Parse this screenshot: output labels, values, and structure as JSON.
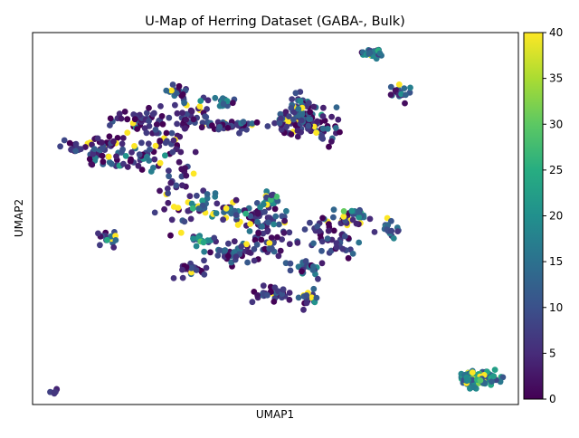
{
  "chart_data": {
    "type": "scatter",
    "title": "U-Map of Herring Dataset (GABA-, Bulk)",
    "xlabel": "UMAP1",
    "ylabel": "UMAP2",
    "xticks": false,
    "yticks": false,
    "grid": false,
    "colormap": "viridis",
    "colorbar": {
      "min": 0,
      "max": 40,
      "ticks": [
        "0",
        "5",
        "10",
        "15",
        "20",
        "25",
        "30",
        "35",
        "40"
      ]
    },
    "xlim": [
      0,
      100
    ],
    "ylim": [
      0,
      100
    ],
    "clusters": [
      {
        "x": 70.5,
        "y": 94.5,
        "sx": 1.4,
        "sy": 0.7,
        "n": 24,
        "color_mean": 14,
        "color_spread": 12
      },
      {
        "x": 75.5,
        "y": 83.5,
        "sx": 1.1,
        "sy": 1.0,
        "n": 18,
        "color_mean": 9,
        "color_spread": 10
      },
      {
        "x": 56.5,
        "y": 75.5,
        "sx": 3.8,
        "sy": 2.2,
        "n": 110,
        "color_mean": 6,
        "color_spread": 9
      },
      {
        "x": 55.5,
        "y": 80.5,
        "sx": 1.2,
        "sy": 1.4,
        "n": 30,
        "color_mean": 8,
        "color_spread": 10
      },
      {
        "x": 22.5,
        "y": 76.5,
        "sx": 3.0,
        "sy": 1.8,
        "n": 45,
        "color_mean": 5,
        "color_spread": 9
      },
      {
        "x": 40.5,
        "y": 75.0,
        "sx": 3.0,
        "sy": 0.8,
        "n": 40,
        "color_mean": 6,
        "color_spread": 10
      },
      {
        "x": 33.5,
        "y": 78.0,
        "sx": 2.0,
        "sy": 2.2,
        "n": 35,
        "color_mean": 4,
        "color_spread": 7
      },
      {
        "x": 30.5,
        "y": 84.0,
        "sx": 1.5,
        "sy": 1.0,
        "n": 18,
        "color_mean": 9,
        "color_spread": 10
      },
      {
        "x": 39.5,
        "y": 81.5,
        "sx": 1.5,
        "sy": 0.8,
        "n": 16,
        "color_mean": 12,
        "color_spread": 10
      },
      {
        "x": 20.5,
        "y": 67.0,
        "sx": 2.5,
        "sy": 2.2,
        "n": 40,
        "color_mean": 8,
        "color_spread": 10
      },
      {
        "x": 13.5,
        "y": 67.5,
        "sx": 1.2,
        "sy": 1.8,
        "n": 22,
        "color_mean": 8,
        "color_spread": 10
      },
      {
        "x": 15.5,
        "y": 70.5,
        "sx": 2.0,
        "sy": 1.0,
        "n": 20,
        "color_mean": 3,
        "color_spread": 6
      },
      {
        "x": 28.0,
        "y": 71.0,
        "sx": 2.0,
        "sy": 2.5,
        "n": 30,
        "color_mean": 6,
        "color_spread": 9
      },
      {
        "x": 30.5,
        "y": 57.0,
        "sx": 2.5,
        "sy": 5.0,
        "n": 40,
        "color_mean": 3,
        "color_spread": 6
      },
      {
        "x": 34.5,
        "y": 53.5,
        "sx": 2.2,
        "sy": 2.0,
        "n": 22,
        "color_mean": 14,
        "color_spread": 10
      },
      {
        "x": 8.5,
        "y": 69.0,
        "sx": 1.5,
        "sy": 0.8,
        "n": 16,
        "color_mean": 6,
        "color_spread": 8
      },
      {
        "x": 15.5,
        "y": 44.5,
        "sx": 1.2,
        "sy": 1.2,
        "n": 16,
        "color_mean": 10,
        "color_spread": 10
      },
      {
        "x": 47.5,
        "y": 50.0,
        "sx": 3.0,
        "sy": 2.5,
        "n": 55,
        "color_mean": 6,
        "color_spread": 9
      },
      {
        "x": 49.0,
        "y": 55.5,
        "sx": 1.2,
        "sy": 1.2,
        "n": 18,
        "color_mean": 15,
        "color_spread": 10
      },
      {
        "x": 40.5,
        "y": 51.5,
        "sx": 1.5,
        "sy": 1.2,
        "n": 16,
        "color_mean": 12,
        "color_spread": 10
      },
      {
        "x": 41.0,
        "y": 40.5,
        "sx": 2.5,
        "sy": 1.5,
        "n": 32,
        "color_mean": 9,
        "color_spread": 10
      },
      {
        "x": 33.5,
        "y": 36.0,
        "sx": 1.8,
        "sy": 1.2,
        "n": 20,
        "color_mean": 5,
        "color_spread": 7
      },
      {
        "x": 35.0,
        "y": 44.5,
        "sx": 1.5,
        "sy": 0.8,
        "n": 16,
        "color_mean": 15,
        "color_spread": 10
      },
      {
        "x": 48.0,
        "y": 43.5,
        "sx": 2.5,
        "sy": 3.0,
        "n": 40,
        "color_mean": 6,
        "color_spread": 9
      },
      {
        "x": 49.5,
        "y": 30.0,
        "sx": 2.5,
        "sy": 1.2,
        "n": 30,
        "color_mean": 5,
        "color_spread": 8
      },
      {
        "x": 56.5,
        "y": 28.5,
        "sx": 1.5,
        "sy": 1.0,
        "n": 18,
        "color_mean": 10,
        "color_spread": 10
      },
      {
        "x": 56.0,
        "y": 36.5,
        "sx": 2.0,
        "sy": 1.0,
        "n": 22,
        "color_mean": 10,
        "color_spread": 10
      },
      {
        "x": 61.0,
        "y": 44.5,
        "sx": 2.5,
        "sy": 2.5,
        "n": 35,
        "color_mean": 5,
        "color_spread": 8
      },
      {
        "x": 63.5,
        "y": 49.5,
        "sx": 3.0,
        "sy": 1.2,
        "n": 30,
        "color_mean": 6,
        "color_spread": 9
      },
      {
        "x": 67.0,
        "y": 51.0,
        "sx": 1.2,
        "sy": 0.8,
        "n": 14,
        "color_mean": 14,
        "color_spread": 10
      },
      {
        "x": 72.5,
        "y": 47.0,
        "sx": 1.5,
        "sy": 1.2,
        "n": 18,
        "color_mean": 12,
        "color_spread": 10
      },
      {
        "x": 91.5,
        "y": 7.0,
        "sx": 2.0,
        "sy": 1.0,
        "n": 140,
        "color_mean": 20,
        "color_spread": 11
      },
      {
        "x": 4.5,
        "y": 3.5,
        "sx": 0.6,
        "sy": 0.35,
        "n": 6,
        "color_mean": 6,
        "color_spread": 2
      }
    ]
  }
}
